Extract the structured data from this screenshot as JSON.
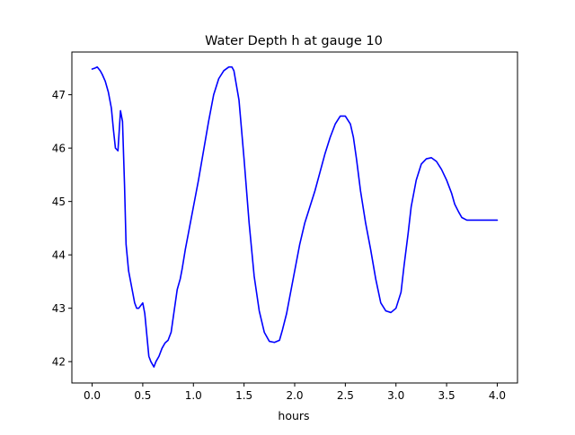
{
  "chart_data": {
    "type": "line",
    "title": "Water Depth h at gauge 10",
    "xlabel": "hours",
    "ylabel": "",
    "xlim": [
      -0.2,
      4.2
    ],
    "ylim": [
      41.6,
      47.8
    ],
    "xticks": [
      0.0,
      0.5,
      1.0,
      1.5,
      2.0,
      2.5,
      3.0,
      3.5,
      4.0
    ],
    "xtick_labels": [
      "0.0",
      "0.5",
      "1.0",
      "1.5",
      "2.0",
      "2.5",
      "3.0",
      "3.5",
      "4.0"
    ],
    "yticks": [
      42,
      43,
      44,
      45,
      46,
      47
    ],
    "ytick_labels": [
      "42",
      "43",
      "44",
      "45",
      "46",
      "47"
    ],
    "grid": false,
    "legend": "none",
    "series": [
      {
        "color": "#0000ff",
        "x": [
          0.0,
          0.03,
          0.05,
          0.08,
          0.1,
          0.13,
          0.16,
          0.19,
          0.21,
          0.23,
          0.255,
          0.28,
          0.3,
          0.32,
          0.335,
          0.36,
          0.39,
          0.42,
          0.44,
          0.46,
          0.48,
          0.5,
          0.52,
          0.54,
          0.56,
          0.58,
          0.61,
          0.63,
          0.66,
          0.69,
          0.72,
          0.75,
          0.78,
          0.81,
          0.84,
          0.87,
          0.89,
          0.92,
          0.95,
          1.0,
          1.05,
          1.1,
          1.15,
          1.2,
          1.25,
          1.3,
          1.35,
          1.38,
          1.4,
          1.45,
          1.5,
          1.55,
          1.6,
          1.65,
          1.7,
          1.75,
          1.8,
          1.85,
          1.88,
          1.92,
          1.95,
          2.0,
          2.05,
          2.1,
          2.15,
          2.2,
          2.25,
          2.3,
          2.35,
          2.4,
          2.45,
          2.5,
          2.55,
          2.58,
          2.61,
          2.65,
          2.7,
          2.75,
          2.8,
          2.85,
          2.9,
          2.95,
          3.0,
          3.05,
          3.08,
          3.12,
          3.15,
          3.2,
          3.25,
          3.3,
          3.35,
          3.4,
          3.45,
          3.5,
          3.55,
          3.58,
          3.62,
          3.65,
          3.7,
          3.75,
          3.8,
          3.85,
          3.9,
          3.95,
          4.0
        ],
        "y": [
          47.48,
          47.5,
          47.52,
          47.45,
          47.38,
          47.25,
          47.05,
          46.75,
          46.35,
          46.0,
          45.95,
          46.7,
          46.5,
          45.3,
          44.2,
          43.7,
          43.4,
          43.1,
          43.0,
          43.0,
          43.05,
          43.1,
          42.9,
          42.5,
          42.1,
          42.0,
          41.9,
          42.0,
          42.1,
          42.25,
          42.35,
          42.4,
          42.55,
          42.95,
          43.35,
          43.55,
          43.75,
          44.1,
          44.4,
          44.9,
          45.4,
          45.95,
          46.5,
          47.0,
          47.3,
          47.45,
          47.52,
          47.52,
          47.45,
          46.9,
          45.8,
          44.6,
          43.6,
          42.95,
          42.55,
          42.38,
          42.36,
          42.4,
          42.6,
          42.9,
          43.2,
          43.7,
          44.2,
          44.6,
          44.9,
          45.2,
          45.55,
          45.9,
          46.2,
          46.45,
          46.6,
          46.6,
          46.45,
          46.2,
          45.8,
          45.2,
          44.6,
          44.1,
          43.55,
          43.1,
          42.95,
          42.92,
          43.0,
          43.3,
          43.8,
          44.4,
          44.9,
          45.4,
          45.7,
          45.8,
          45.82,
          45.75,
          45.6,
          45.4,
          45.15,
          44.95,
          44.8,
          44.7,
          44.65,
          44.65,
          44.65,
          44.65,
          44.65,
          44.65,
          44.65
        ]
      }
    ]
  }
}
